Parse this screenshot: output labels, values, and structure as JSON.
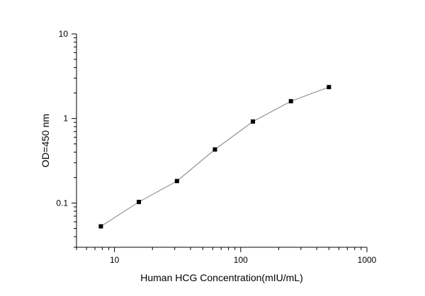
{
  "chart_data": {
    "type": "line",
    "title": "",
    "xlabel": "Human HCG  Concentration(mIU/mL)",
    "ylabel": "OD=450 nm",
    "xscale": "log",
    "yscale": "log",
    "xlim": [
      5,
      1000
    ],
    "ylim": [
      0.03,
      10
    ],
    "xticks": [
      10,
      100,
      1000
    ],
    "xtick_labels": [
      "10",
      "100",
      "1000"
    ],
    "yticks": [
      0.1,
      1,
      10
    ],
    "ytick_labels": [
      "0.1",
      "1",
      "10"
    ],
    "grid": false,
    "legend": "none",
    "series": [
      {
        "x": [
          7.8,
          15.6,
          31.25,
          62.5,
          125,
          250,
          500
        ],
        "y": [
          0.053,
          0.103,
          0.182,
          0.43,
          0.92,
          1.6,
          2.35
        ],
        "marker": "square",
        "marker_color": "#000000",
        "line_color": "#808080"
      }
    ]
  }
}
